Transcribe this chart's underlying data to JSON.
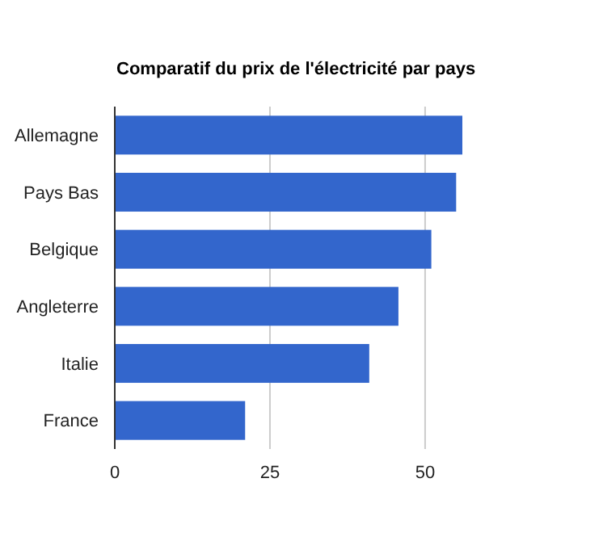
{
  "chart_data": {
    "type": "bar",
    "orientation": "horizontal",
    "title": "Comparatif du prix de l'électricité par pays",
    "categories": [
      "Allemagne",
      "Pays Bas",
      "Belgique",
      "Angleterre",
      "Italie",
      "France"
    ],
    "values": [
      56,
      55,
      51,
      45.7,
      41,
      21
    ],
    "color": "#3366cc",
    "xlim": [
      0,
      56
    ],
    "xticks": [
      0,
      25,
      50
    ],
    "grid": "x"
  }
}
